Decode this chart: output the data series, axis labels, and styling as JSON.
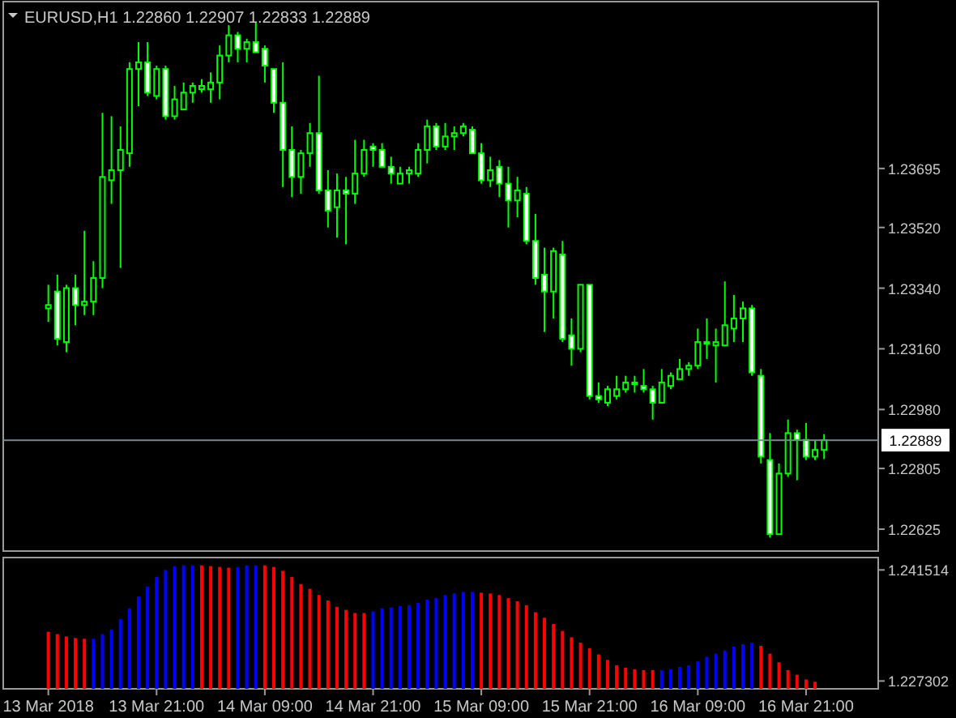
{
  "chart_data": [
    {
      "type": "candlestick",
      "title": "EURUSD,H1 1.22860 1.22907 1.22833 1.22889",
      "color": "#00ff00",
      "x": [
        "2018-03-13T09:00",
        "2018-03-13T10:00",
        "2018-03-13T11:00",
        "2018-03-13T12:00",
        "2018-03-13T13:00",
        "2018-03-13T14:00",
        "2018-03-13T15:00",
        "2018-03-13T16:00",
        "2018-03-13T17:00",
        "2018-03-13T18:00",
        "2018-03-13T19:00",
        "2018-03-13T20:00",
        "2018-03-13T21:00",
        "2018-03-13T22:00",
        "2018-03-13T23:00",
        "2018-03-14T00:00",
        "2018-03-14T01:00",
        "2018-03-14T02:00",
        "2018-03-14T03:00",
        "2018-03-14T04:00",
        "2018-03-14T05:00",
        "2018-03-14T06:00",
        "2018-03-14T07:00",
        "2018-03-14T08:00",
        "2018-03-14T09:00",
        "2018-03-14T10:00",
        "2018-03-14T11:00",
        "2018-03-14T12:00",
        "2018-03-14T13:00",
        "2018-03-14T14:00",
        "2018-03-14T15:00",
        "2018-03-14T16:00",
        "2018-03-14T17:00",
        "2018-03-14T18:00",
        "2018-03-14T19:00",
        "2018-03-14T20:00",
        "2018-03-14T21:00",
        "2018-03-14T22:00",
        "2018-03-14T23:00",
        "2018-03-15T00:00",
        "2018-03-15T01:00",
        "2018-03-15T02:00",
        "2018-03-15T03:00",
        "2018-03-15T04:00",
        "2018-03-15T05:00",
        "2018-03-15T06:00",
        "2018-03-15T07:00",
        "2018-03-15T08:00",
        "2018-03-15T09:00",
        "2018-03-15T10:00",
        "2018-03-15T11:00",
        "2018-03-15T12:00",
        "2018-03-15T13:00",
        "2018-03-15T14:00",
        "2018-03-15T15:00",
        "2018-03-15T16:00",
        "2018-03-15T17:00",
        "2018-03-15T18:00",
        "2018-03-15T19:00",
        "2018-03-15T20:00",
        "2018-03-15T21:00",
        "2018-03-15T22:00",
        "2018-03-15T23:00",
        "2018-03-16T00:00",
        "2018-03-16T01:00",
        "2018-03-16T02:00",
        "2018-03-16T03:00",
        "2018-03-16T04:00",
        "2018-03-16T05:00",
        "2018-03-16T06:00",
        "2018-03-16T07:00",
        "2018-03-16T08:00",
        "2018-03-16T09:00",
        "2018-03-16T10:00",
        "2018-03-16T11:00",
        "2018-03-16T12:00",
        "2018-03-16T13:00",
        "2018-03-16T14:00",
        "2018-03-16T15:00",
        "2018-03-16T16:00",
        "2018-03-16T17:00",
        "2018-03-16T18:00",
        "2018-03-16T19:00",
        "2018-03-16T20:00",
        "2018-03-16T21:00",
        "2018-03-16T22:00",
        "2018-03-16T23:00"
      ],
      "ohlc": [
        [
          1.2328,
          1.2335,
          1.2324,
          1.2329
        ],
        [
          1.2333,
          1.2338,
          1.2317,
          1.2319
        ],
        [
          1.2318,
          1.2335,
          1.2315,
          1.2334
        ],
        [
          1.2334,
          1.2338,
          1.2323,
          1.2329
        ],
        [
          1.2329,
          1.2351,
          1.2326,
          1.233
        ],
        [
          1.233,
          1.2342,
          1.2326,
          1.2337
        ],
        [
          1.2337,
          1.2386,
          1.2334,
          1.2367
        ],
        [
          1.2366,
          1.2385,
          1.2359,
          1.2369
        ],
        [
          1.2369,
          1.2382,
          1.234,
          1.2375
        ],
        [
          1.2374,
          1.2401,
          1.237,
          1.2399
        ],
        [
          1.2399,
          1.2407,
          1.2388,
          1.2401
        ],
        [
          1.2401,
          1.2407,
          1.2391,
          1.2392
        ],
        [
          1.2391,
          1.24,
          1.239,
          1.2399
        ],
        [
          1.2399,
          1.24,
          1.2384,
          1.2385
        ],
        [
          1.2385,
          1.2394,
          1.2384,
          1.239
        ],
        [
          1.2387,
          1.2395,
          1.2387,
          1.2392
        ],
        [
          1.2392,
          1.2395,
          1.2389,
          1.2394
        ],
        [
          1.2393,
          1.2396,
          1.2392,
          1.2394
        ],
        [
          1.2393,
          1.2398,
          1.2389,
          1.2395
        ],
        [
          1.2395,
          1.2406,
          1.239,
          1.2403
        ],
        [
          1.2403,
          1.2412,
          1.2401,
          1.2409
        ],
        [
          1.2409,
          1.241,
          1.2401,
          1.2405
        ],
        [
          1.2405,
          1.2408,
          1.2401,
          1.2407
        ],
        [
          1.2407,
          1.2413,
          1.2404,
          1.2404
        ],
        [
          1.2405,
          1.2406,
          1.2395,
          1.24
        ],
        [
          1.2399,
          1.2399,
          1.2386,
          1.2389
        ],
        [
          1.2389,
          1.2401,
          1.2364,
          1.2375
        ],
        [
          1.2375,
          1.2382,
          1.2361,
          1.2367
        ],
        [
          1.2367,
          1.2375,
          1.2362,
          1.2374
        ],
        [
          1.2374,
          1.2383,
          1.237,
          1.238
        ],
        [
          1.238,
          1.2397,
          1.2362,
          1.2363
        ],
        [
          1.2363,
          1.2369,
          1.2352,
          1.2357
        ],
        [
          1.2358,
          1.2368,
          1.2349,
          1.2363
        ],
        [
          1.2363,
          1.2367,
          1.2347,
          1.2362
        ],
        [
          1.2362,
          1.2378,
          1.2359,
          1.2368
        ],
        [
          1.2368,
          1.2378,
          1.2367,
          1.2375
        ],
        [
          1.2376,
          1.2377,
          1.237,
          1.2375
        ],
        [
          1.2375,
          1.2377,
          1.237,
          1.237
        ],
        [
          1.237,
          1.2373,
          1.2365,
          1.2368
        ],
        [
          1.2365,
          1.237,
          1.2365,
          1.2368
        ],
        [
          1.2368,
          1.237,
          1.2365,
          1.2369
        ],
        [
          1.2368,
          1.2377,
          1.2367,
          1.2375
        ],
        [
          1.2375,
          1.2384,
          1.2371,
          1.2382
        ],
        [
          1.2382,
          1.2383,
          1.2375,
          1.2376
        ],
        [
          1.2376,
          1.2383,
          1.2375,
          1.2379
        ],
        [
          1.2379,
          1.2382,
          1.2375,
          1.238
        ],
        [
          1.238,
          1.2383,
          1.2379,
          1.2382
        ],
        [
          1.2381,
          1.2382,
          1.2374,
          1.2374
        ],
        [
          1.2374,
          1.2377,
          1.2365,
          1.2366
        ],
        [
          1.2366,
          1.2373,
          1.2364,
          1.2369
        ],
        [
          1.237,
          1.2372,
          1.2361,
          1.2365
        ],
        [
          1.2365,
          1.237,
          1.2352,
          1.236
        ],
        [
          1.236,
          1.2367,
          1.2355,
          1.2363
        ],
        [
          1.2362,
          1.2364,
          1.2347,
          1.2348
        ],
        [
          1.2348,
          1.2356,
          1.2335,
          1.2337
        ],
        [
          1.2338,
          1.2346,
          1.2321,
          1.2333
        ],
        [
          1.2333,
          1.2346,
          1.2325,
          1.2345
        ],
        [
          1.2344,
          1.2348,
          1.2318,
          1.2319
        ],
        [
          1.232,
          1.2325,
          1.2311,
          1.2316
        ],
        [
          1.2316,
          1.2335,
          1.2315,
          1.2335
        ],
        [
          1.2335,
          1.2335,
          1.2301,
          1.2302
        ],
        [
          1.2302,
          1.2306,
          1.23,
          1.2301
        ],
        [
          1.23,
          1.2305,
          1.2299,
          1.2304
        ],
        [
          1.2302,
          1.2308,
          1.2301,
          1.2304
        ],
        [
          1.2304,
          1.2308,
          1.2303,
          1.2306
        ],
        [
          1.2306,
          1.2308,
          1.2303,
          1.2306
        ],
        [
          1.2305,
          1.231,
          1.2303,
          1.2304
        ],
        [
          1.2304,
          1.2305,
          1.2295,
          1.23
        ],
        [
          1.23,
          1.231,
          1.23,
          1.2306
        ],
        [
          1.2305,
          1.2309,
          1.2304,
          1.2308
        ],
        [
          1.2307,
          1.2313,
          1.2307,
          1.231
        ],
        [
          1.231,
          1.2312,
          1.2308,
          1.2311
        ],
        [
          1.2311,
          1.2322,
          1.231,
          1.2318
        ],
        [
          1.2318,
          1.2325,
          1.2313,
          1.2318
        ],
        [
          1.2317,
          1.2322,
          1.2306,
          1.2318
        ],
        [
          1.2317,
          1.2336,
          1.2317,
          1.2323
        ],
        [
          1.2322,
          1.2332,
          1.2318,
          1.2325
        ],
        [
          1.2325,
          1.233,
          1.2318,
          1.2328
        ],
        [
          1.2328,
          1.2329,
          1.2308,
          1.2309
        ],
        [
          1.2308,
          1.231,
          1.2282,
          1.2284
        ],
        [
          1.2283,
          1.2291,
          1.226,
          1.2261
        ],
        [
          1.2261,
          1.2282,
          1.2261,
          1.2279
        ],
        [
          1.2279,
          1.2295,
          1.2278,
          1.2291
        ],
        [
          1.2291,
          1.2292,
          1.2277,
          1.2289
        ],
        [
          1.2289,
          1.2294,
          1.2283,
          1.2284
        ],
        [
          1.2284,
          1.2289,
          1.2283,
          1.2286
        ],
        [
          1.2286,
          1.22907,
          1.22833,
          1.22889
        ]
      ],
      "xlim": [
        "2018-03-13T04:00",
        "2018-03-17T05:00"
      ],
      "ylim": [
        1.2256,
        1.2419
      ],
      "yticks": [
        1.23695,
        {
          "value": 1.2352,
          "label": "1.23520"
        },
        {
          "value": 1.2334,
          "label": "1.23340"
        },
        {
          "value": 1.2316,
          "label": "1.23160"
        },
        {
          "value": 1.2298,
          "label": "1.22980"
        },
        1.22805,
        1.22625
      ],
      "tick_labels": "y",
      "ref_lines": [
        {
          "axis": "y",
          "value": 1.22889,
          "label": "1.22889",
          "color": "#778899"
        }
      ]
    },
    {
      "type": "bar",
      "x": [
        "2018-03-13T09:00",
        "2018-03-13T10:00",
        "2018-03-13T11:00",
        "2018-03-13T12:00",
        "2018-03-13T13:00",
        "2018-03-13T14:00",
        "2018-03-13T15:00",
        "2018-03-13T16:00",
        "2018-03-13T17:00",
        "2018-03-13T18:00",
        "2018-03-13T19:00",
        "2018-03-13T20:00",
        "2018-03-13T21:00",
        "2018-03-13T22:00",
        "2018-03-13T23:00",
        "2018-03-14T00:00",
        "2018-03-14T01:00",
        "2018-03-14T02:00",
        "2018-03-14T03:00",
        "2018-03-14T04:00",
        "2018-03-14T05:00",
        "2018-03-14T06:00",
        "2018-03-14T07:00",
        "2018-03-14T08:00",
        "2018-03-14T09:00",
        "2018-03-14T10:00",
        "2018-03-14T11:00",
        "2018-03-14T12:00",
        "2018-03-14T13:00",
        "2018-03-14T14:00",
        "2018-03-14T15:00",
        "2018-03-14T16:00",
        "2018-03-14T17:00",
        "2018-03-14T18:00",
        "2018-03-14T19:00",
        "2018-03-14T20:00",
        "2018-03-14T21:00",
        "2018-03-14T22:00",
        "2018-03-14T23:00",
        "2018-03-15T00:00",
        "2018-03-15T01:00",
        "2018-03-15T02:00",
        "2018-03-15T03:00",
        "2018-03-15T04:00",
        "2018-03-15T05:00",
        "2018-03-15T06:00",
        "2018-03-15T07:00",
        "2018-03-15T08:00",
        "2018-03-15T09:00",
        "2018-03-15T10:00",
        "2018-03-15T11:00",
        "2018-03-15T12:00",
        "2018-03-15T13:00",
        "2018-03-15T14:00",
        "2018-03-15T15:00",
        "2018-03-15T16:00",
        "2018-03-15T17:00",
        "2018-03-15T18:00",
        "2018-03-15T19:00",
        "2018-03-15T20:00",
        "2018-03-15T21:00",
        "2018-03-15T22:00",
        "2018-03-15T23:00",
        "2018-03-16T00:00",
        "2018-03-16T01:00",
        "2018-03-16T02:00",
        "2018-03-16T03:00",
        "2018-03-16T04:00",
        "2018-03-16T05:00",
        "2018-03-16T06:00",
        "2018-03-16T07:00",
        "2018-03-16T08:00",
        "2018-03-16T09:00",
        "2018-03-16T10:00",
        "2018-03-16T11:00",
        "2018-03-16T12:00",
        "2018-03-16T13:00",
        "2018-03-16T14:00",
        "2018-03-16T15:00",
        "2018-03-16T16:00",
        "2018-03-16T17:00",
        "2018-03-16T18:00",
        "2018-03-16T19:00",
        "2018-03-16T20:00",
        "2018-03-16T21:00",
        "2018-03-16T22:00"
      ],
      "values": [
        1.2336,
        1.2333,
        1.233,
        1.2328,
        1.2327,
        1.2327,
        1.2333,
        1.2339,
        1.2352,
        1.2366,
        1.2381,
        1.2394,
        1.2406,
        1.2415,
        1.242,
        1.2421,
        1.2421,
        1.2421,
        1.242,
        1.2419,
        1.2418,
        1.2419,
        1.2421,
        1.2421,
        1.2421,
        1.2419,
        1.2414,
        1.2406,
        1.2397,
        1.2391,
        1.2383,
        1.2376,
        1.2368,
        1.2364,
        1.236,
        1.236,
        1.2362,
        1.2366,
        1.2367,
        1.2369,
        1.237,
        1.2373,
        1.2377,
        1.2379,
        1.2383,
        1.2385,
        1.2387,
        1.2387,
        1.2386,
        1.2385,
        1.2383,
        1.2379,
        1.2375,
        1.237,
        1.2361,
        1.2354,
        1.2346,
        1.2337,
        1.2329,
        1.2322,
        1.2315,
        1.2307,
        1.23,
        1.2293,
        1.229,
        1.2288,
        1.2287,
        1.2287,
        1.2287,
        1.2288,
        1.2291,
        1.2293,
        1.2298,
        1.2304,
        1.2308,
        1.2312,
        1.2317,
        1.232,
        1.2322,
        1.2318,
        1.2308,
        1.2297,
        1.2287,
        1.2281,
        1.2275,
        1.2272
      ],
      "colors": [
        "#ff0000",
        "#ff0000",
        "#ff0000",
        "#ff0000",
        "#ff0000",
        "#0000ff",
        "#0000ff",
        "#0000ff",
        "#0000ff",
        "#0000ff",
        "#0000ff",
        "#0000ff",
        "#0000ff",
        "#0000ff",
        "#0000ff",
        "#0000ff",
        "#0000ff",
        "#ff0000",
        "#ff0000",
        "#ff0000",
        "#ff0000",
        "#0000ff",
        "#0000ff",
        "#0000ff",
        "#ff0000",
        "#ff0000",
        "#ff0000",
        "#ff0000",
        "#ff0000",
        "#ff0000",
        "#ff0000",
        "#ff0000",
        "#ff0000",
        "#ff0000",
        "#ff0000",
        "#ff0000",
        "#0000ff",
        "#0000ff",
        "#0000ff",
        "#0000ff",
        "#0000ff",
        "#0000ff",
        "#0000ff",
        "#0000ff",
        "#0000ff",
        "#0000ff",
        "#0000ff",
        "#0000ff",
        "#ff0000",
        "#ff0000",
        "#ff0000",
        "#ff0000",
        "#ff0000",
        "#ff0000",
        "#ff0000",
        "#ff0000",
        "#ff0000",
        "#ff0000",
        "#ff0000",
        "#ff0000",
        "#ff0000",
        "#ff0000",
        "#ff0000",
        "#ff0000",
        "#ff0000",
        "#ff0000",
        "#ff0000",
        "#ff0000",
        "#0000ff",
        "#0000ff",
        "#0000ff",
        "#0000ff",
        "#0000ff",
        "#0000ff",
        "#0000ff",
        "#0000ff",
        "#0000ff",
        "#0000ff",
        "#0000ff",
        "#ff0000",
        "#ff0000",
        "#ff0000",
        "#ff0000",
        "#ff0000",
        "#ff0000",
        "#ff0000"
      ],
      "xlim": [
        "2018-03-13T04:00",
        "2018-03-17T05:00"
      ],
      "ylim": [
        1.2263,
        1.2431
      ],
      "yticks": [
        1.241514,
        1.227302
      ],
      "xticks": [
        {
          "value": "2018-03-13T09:00",
          "label": "13 Mar 2018"
        },
        {
          "value": "2018-03-13T21:00",
          "label": "13 Mar 21:00"
        },
        {
          "value": "2018-03-14T09:00",
          "label": "14 Mar 09:00"
        },
        {
          "value": "2018-03-14T21:00",
          "label": "14 Mar 21:00"
        },
        {
          "value": "2018-03-15T09:00",
          "label": "15 Mar 09:00"
        },
        {
          "value": "2018-03-15T21:00",
          "label": "15 Mar 21:00"
        },
        {
          "value": "2018-03-16T09:00",
          "label": "16 Mar 09:00"
        },
        {
          "value": "2018-03-16T21:00",
          "label": "16 Mar 21:00"
        }
      ]
    }
  ]
}
